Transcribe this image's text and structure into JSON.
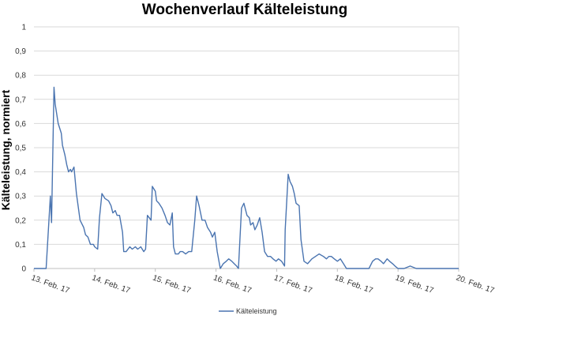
{
  "chart_data": {
    "type": "line",
    "title": "Wochenverlauf Kälteleistung",
    "xlabel": "",
    "ylabel": "Kälteleistung, normiert",
    "ylim": [
      0,
      1
    ],
    "yticks": [
      "0",
      "0,1",
      "0,2",
      "0,3",
      "0,4",
      "0,5",
      "0,6",
      "0,7",
      "0,8",
      "0,9",
      "1"
    ],
    "xlim": [
      0,
      7
    ],
    "xticks": [
      "13. Feb. 17",
      "14. Feb. 17",
      "15. Feb. 17",
      "16. Feb. 17",
      "17. Feb. 17",
      "18. Feb. 17",
      "19. Feb. 17",
      "20. Feb. 17"
    ],
    "x_unit": "Tage ab 13. Feb. 17",
    "grid": "horizontal",
    "legend_position": "bottom",
    "line_color": "#4a74b0",
    "series": [
      {
        "name": "Kälteleistung",
        "points": [
          [
            0.0,
            0.0
          ],
          [
            0.2,
            0.0
          ],
          [
            0.27,
            0.3
          ],
          [
            0.29,
            0.19
          ],
          [
            0.33,
            0.75
          ],
          [
            0.35,
            0.68
          ],
          [
            0.4,
            0.6
          ],
          [
            0.45,
            0.56
          ],
          [
            0.47,
            0.51
          ],
          [
            0.51,
            0.47
          ],
          [
            0.54,
            0.43
          ],
          [
            0.57,
            0.4
          ],
          [
            0.6,
            0.41
          ],
          [
            0.62,
            0.4
          ],
          [
            0.66,
            0.42
          ],
          [
            0.7,
            0.31
          ],
          [
            0.76,
            0.2
          ],
          [
            0.82,
            0.17
          ],
          [
            0.85,
            0.14
          ],
          [
            0.89,
            0.13
          ],
          [
            0.93,
            0.1
          ],
          [
            0.98,
            0.1
          ],
          [
            1.0,
            0.09
          ],
          [
            1.05,
            0.08
          ],
          [
            1.08,
            0.21
          ],
          [
            1.12,
            0.31
          ],
          [
            1.17,
            0.29
          ],
          [
            1.23,
            0.28
          ],
          [
            1.27,
            0.26
          ],
          [
            1.3,
            0.23
          ],
          [
            1.34,
            0.24
          ],
          [
            1.37,
            0.22
          ],
          [
            1.41,
            0.22
          ],
          [
            1.46,
            0.15
          ],
          [
            1.48,
            0.07
          ],
          [
            1.52,
            0.07
          ],
          [
            1.58,
            0.09
          ],
          [
            1.62,
            0.08
          ],
          [
            1.67,
            0.09
          ],
          [
            1.71,
            0.08
          ],
          [
            1.76,
            0.09
          ],
          [
            1.81,
            0.07
          ],
          [
            1.84,
            0.08
          ],
          [
            1.87,
            0.22
          ],
          [
            1.93,
            0.2
          ],
          [
            1.95,
            0.34
          ],
          [
            2.0,
            0.32
          ],
          [
            2.02,
            0.28
          ],
          [
            2.06,
            0.27
          ],
          [
            2.11,
            0.25
          ],
          [
            2.16,
            0.22
          ],
          [
            2.2,
            0.19
          ],
          [
            2.24,
            0.18
          ],
          [
            2.28,
            0.23
          ],
          [
            2.3,
            0.09
          ],
          [
            2.33,
            0.06
          ],
          [
            2.38,
            0.06
          ],
          [
            2.41,
            0.07
          ],
          [
            2.45,
            0.07
          ],
          [
            2.5,
            0.06
          ],
          [
            2.55,
            0.07
          ],
          [
            2.6,
            0.07
          ],
          [
            2.65,
            0.2
          ],
          [
            2.68,
            0.3
          ],
          [
            2.72,
            0.26
          ],
          [
            2.77,
            0.2
          ],
          [
            2.82,
            0.2
          ],
          [
            2.86,
            0.17
          ],
          [
            2.91,
            0.15
          ],
          [
            2.94,
            0.13
          ],
          [
            2.98,
            0.15
          ],
          [
            3.02,
            0.07
          ],
          [
            3.07,
            0.0
          ],
          [
            3.12,
            0.02
          ],
          [
            3.17,
            0.03
          ],
          [
            3.21,
            0.04
          ],
          [
            3.26,
            0.03
          ],
          [
            3.3,
            0.02
          ],
          [
            3.34,
            0.01
          ],
          [
            3.37,
            0.0
          ],
          [
            3.42,
            0.25
          ],
          [
            3.46,
            0.27
          ],
          [
            3.51,
            0.22
          ],
          [
            3.55,
            0.21
          ],
          [
            3.57,
            0.18
          ],
          [
            3.61,
            0.19
          ],
          [
            3.64,
            0.16
          ],
          [
            3.68,
            0.18
          ],
          [
            3.72,
            0.21
          ],
          [
            3.76,
            0.15
          ],
          [
            3.8,
            0.07
          ],
          [
            3.85,
            0.05
          ],
          [
            3.9,
            0.05
          ],
          [
            3.94,
            0.04
          ],
          [
            3.99,
            0.03
          ],
          [
            4.03,
            0.04
          ],
          [
            4.08,
            0.03
          ],
          [
            4.13,
            0.01
          ],
          [
            4.14,
            0.16
          ],
          [
            4.19,
            0.39
          ],
          [
            4.22,
            0.36
          ],
          [
            4.26,
            0.34
          ],
          [
            4.29,
            0.31
          ],
          [
            4.32,
            0.27
          ],
          [
            4.37,
            0.26
          ],
          [
            4.4,
            0.12
          ],
          [
            4.45,
            0.03
          ],
          [
            4.51,
            0.02
          ],
          [
            4.58,
            0.04
          ],
          [
            4.64,
            0.05
          ],
          [
            4.7,
            0.06
          ],
          [
            4.77,
            0.05
          ],
          [
            4.82,
            0.04
          ],
          [
            4.86,
            0.05
          ],
          [
            4.9,
            0.05
          ],
          [
            4.95,
            0.04
          ],
          [
            5.0,
            0.03
          ],
          [
            5.05,
            0.04
          ],
          [
            5.1,
            0.02
          ],
          [
            5.15,
            0.0
          ],
          [
            5.52,
            0.0
          ],
          [
            5.58,
            0.03
          ],
          [
            5.63,
            0.04
          ],
          [
            5.67,
            0.04
          ],
          [
            5.72,
            0.03
          ],
          [
            5.76,
            0.02
          ],
          [
            5.82,
            0.04
          ],
          [
            5.86,
            0.03
          ],
          [
            5.91,
            0.02
          ],
          [
            5.95,
            0.01
          ],
          [
            6.0,
            0.0
          ],
          [
            6.1,
            0.0
          ],
          [
            6.2,
            0.01
          ],
          [
            6.3,
            0.0
          ],
          [
            6.4,
            0.0
          ],
          [
            6.5,
            0.0
          ],
          [
            6.6,
            0.0
          ],
          [
            6.7,
            0.0
          ],
          [
            6.8,
            0.0
          ],
          [
            6.9,
            0.0
          ],
          [
            7.0,
            0.0
          ]
        ]
      }
    ]
  }
}
